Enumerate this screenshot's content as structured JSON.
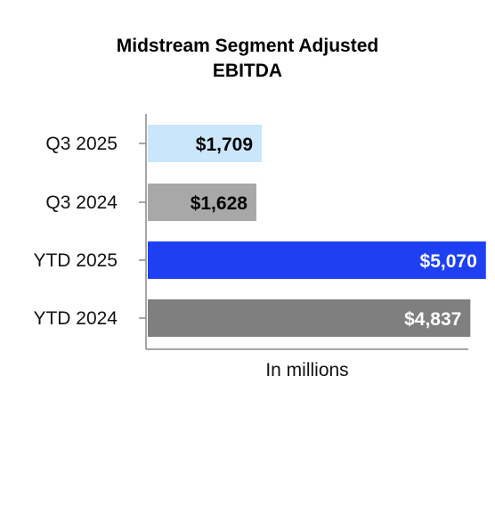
{
  "chart_data": {
    "type": "bar",
    "orientation": "horizontal",
    "title_lines": [
      "Midstream Segment Adjusted",
      "EBITDA"
    ],
    "xlabel": "In millions",
    "ylabel": "",
    "categories": [
      "Q3 2025",
      "Q3 2024",
      "YTD 2025",
      "YTD 2024"
    ],
    "values": [
      1709,
      1628,
      5070,
      4837
    ],
    "value_labels": [
      "$1,709",
      "$1,628",
      "$5,070",
      "$4,837"
    ],
    "bar_colors": [
      "#c9e6fb",
      "#a8a8a8",
      "#1e40f2",
      "#7f7f7f"
    ],
    "label_colors": [
      "#000000",
      "#000000",
      "#ffffff",
      "#ffffff"
    ],
    "xlim": [
      0,
      5500
    ],
    "grid": false,
    "legend": "none"
  }
}
